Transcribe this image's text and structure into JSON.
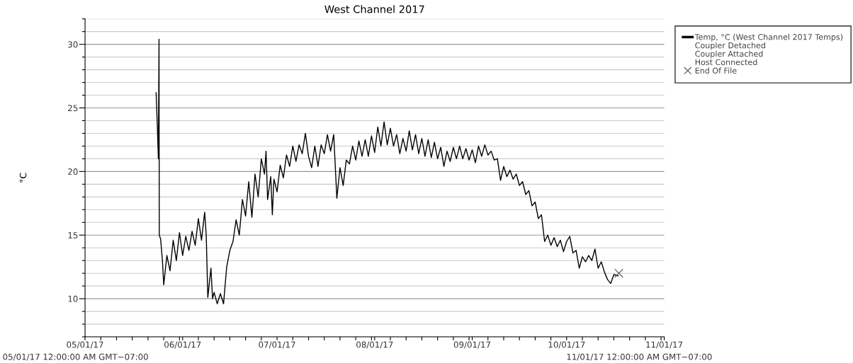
{
  "chart_data": {
    "type": "line",
    "title": "West Channel 2017",
    "ylabel": "°C",
    "annotations": [
      "05/01/17 12:00:00 AM GMT−07:00",
      "11/01/17 12:00:00 AM GMT−07:00"
    ],
    "xlim": [
      "2017-05-01",
      "2017-11-01"
    ],
    "xticks": [
      {
        "value": "2017-05-01",
        "label": "05/01/17"
      },
      {
        "value": "2017-05-06",
        "label": null
      },
      {
        "value": "2017-05-11",
        "label": null
      },
      {
        "value": "2017-05-16",
        "label": null
      },
      {
        "value": "2017-05-21",
        "label": null
      },
      {
        "value": "2017-05-26",
        "label": null
      },
      {
        "value": "2017-05-31",
        "label": null
      },
      {
        "value": "2017-06-01",
        "label": "06/01/17"
      },
      {
        "value": "2017-06-06",
        "label": null
      },
      {
        "value": "2017-06-11",
        "label": null
      },
      {
        "value": "2017-06-16",
        "label": null
      },
      {
        "value": "2017-06-21",
        "label": null
      },
      {
        "value": "2017-06-26",
        "label": null
      },
      {
        "value": "2017-07-01",
        "label": "07/01/17"
      },
      {
        "value": "2017-07-06",
        "label": null
      },
      {
        "value": "2017-07-11",
        "label": null
      },
      {
        "value": "2017-07-16",
        "label": null
      },
      {
        "value": "2017-07-21",
        "label": null
      },
      {
        "value": "2017-07-26",
        "label": null
      },
      {
        "value": "2017-07-31",
        "label": null
      },
      {
        "value": "2017-08-01",
        "label": "08/01/17"
      },
      {
        "value": "2017-08-06",
        "label": null
      },
      {
        "value": "2017-08-11",
        "label": null
      },
      {
        "value": "2017-08-16",
        "label": null
      },
      {
        "value": "2017-08-21",
        "label": null
      },
      {
        "value": "2017-08-26",
        "label": null
      },
      {
        "value": "2017-08-31",
        "label": null
      },
      {
        "value": "2017-09-01",
        "label": "09/01/17"
      },
      {
        "value": "2017-09-06",
        "label": null
      },
      {
        "value": "2017-09-11",
        "label": null
      },
      {
        "value": "2017-09-16",
        "label": null
      },
      {
        "value": "2017-09-21",
        "label": null
      },
      {
        "value": "2017-09-26",
        "label": null
      },
      {
        "value": "2017-10-01",
        "label": "10/01/17"
      },
      {
        "value": "2017-10-06",
        "label": null
      },
      {
        "value": "2017-10-11",
        "label": null
      },
      {
        "value": "2017-10-16",
        "label": null
      },
      {
        "value": "2017-10-21",
        "label": null
      },
      {
        "value": "2017-10-26",
        "label": null
      },
      {
        "value": "2017-10-31",
        "label": null
      },
      {
        "value": "2017-11-01",
        "label": "11/01/17"
      }
    ],
    "ylim": [
      7,
      32
    ],
    "yticks": [
      {
        "value": 7,
        "label": null
      },
      {
        "value": 8,
        "label": null
      },
      {
        "value": 9,
        "label": null
      },
      10,
      {
        "value": 11,
        "label": null
      },
      {
        "value": 12,
        "label": null
      },
      {
        "value": 13,
        "label": null
      },
      {
        "value": 14,
        "label": null
      },
      15,
      {
        "value": 16,
        "label": null
      },
      {
        "value": 17,
        "label": null
      },
      {
        "value": 18,
        "label": null
      },
      {
        "value": 19,
        "label": null
      },
      20,
      {
        "value": 21,
        "label": null
      },
      {
        "value": 22,
        "label": null
      },
      {
        "value": 23,
        "label": null
      },
      {
        "value": 24,
        "label": null
      },
      25,
      {
        "value": 26,
        "label": null
      },
      {
        "value": 27,
        "label": null
      },
      {
        "value": 28,
        "label": null
      },
      {
        "value": 29,
        "label": null
      },
      30,
      {
        "value": 31,
        "label": null
      },
      {
        "value": 32,
        "label": null
      }
    ],
    "grid": "y",
    "legend": "top right",
    "series": [
      {
        "name": "Temp, °C (West Channel 2017 Temps)",
        "color": "#000000",
        "x": [
          "2017-05-23T14:00",
          "2017-05-24T00:00",
          "2017-05-24T07:00",
          "2017-05-24T12:00",
          "2017-05-24T14:00",
          "2017-05-25T00:00",
          "2017-05-25T14:00",
          "2017-05-26",
          "2017-05-27",
          "2017-05-28",
          "2017-05-29",
          "2017-05-30",
          "2017-05-31",
          "2017-06-01",
          "2017-06-02",
          "2017-06-03",
          "2017-06-04",
          "2017-06-05",
          "2017-06-06",
          "2017-06-07",
          "2017-06-08",
          "2017-06-08T12:00",
          "2017-06-09",
          "2017-06-10",
          "2017-06-10T12:00",
          "2017-06-11",
          "2017-06-12",
          "2017-06-13",
          "2017-06-14",
          "2017-06-15",
          "2017-06-16",
          "2017-06-17",
          "2017-06-18",
          "2017-06-19",
          "2017-06-20",
          "2017-06-21",
          "2017-06-22",
          "2017-06-23",
          "2017-06-24",
          "2017-06-25",
          "2017-06-26",
          "2017-06-27",
          "2017-06-27T12:00",
          "2017-06-28",
          "2017-06-29",
          "2017-06-29T12:00",
          "2017-06-30",
          "2017-07-01",
          "2017-07-02",
          "2017-07-03",
          "2017-07-04",
          "2017-07-05",
          "2017-07-06",
          "2017-07-07",
          "2017-07-08",
          "2017-07-09",
          "2017-07-10",
          "2017-07-11",
          "2017-07-12",
          "2017-07-13",
          "2017-07-14",
          "2017-07-15",
          "2017-07-16",
          "2017-07-17",
          "2017-07-18",
          "2017-07-19",
          "2017-07-20",
          "2017-07-21",
          "2017-07-22",
          "2017-07-23",
          "2017-07-24",
          "2017-07-25",
          "2017-07-26",
          "2017-07-27",
          "2017-07-28",
          "2017-07-29",
          "2017-07-30",
          "2017-07-31",
          "2017-08-01",
          "2017-08-02",
          "2017-08-03",
          "2017-08-04",
          "2017-08-05",
          "2017-08-06",
          "2017-08-07",
          "2017-08-08",
          "2017-08-09",
          "2017-08-10",
          "2017-08-11",
          "2017-08-12",
          "2017-08-13",
          "2017-08-14",
          "2017-08-15",
          "2017-08-16",
          "2017-08-17",
          "2017-08-18",
          "2017-08-19",
          "2017-08-20",
          "2017-08-21",
          "2017-08-22",
          "2017-08-23",
          "2017-08-24",
          "2017-08-25",
          "2017-08-26",
          "2017-08-27",
          "2017-08-28",
          "2017-08-29",
          "2017-08-30",
          "2017-08-31",
          "2017-09-01",
          "2017-09-02",
          "2017-09-03",
          "2017-09-04",
          "2017-09-05",
          "2017-09-06",
          "2017-09-07",
          "2017-09-08",
          "2017-09-09",
          "2017-09-10",
          "2017-09-11",
          "2017-09-12",
          "2017-09-13",
          "2017-09-14",
          "2017-09-15",
          "2017-09-16",
          "2017-09-17",
          "2017-09-18",
          "2017-09-19",
          "2017-09-20",
          "2017-09-21",
          "2017-09-22",
          "2017-09-23",
          "2017-09-24",
          "2017-09-25",
          "2017-09-26",
          "2017-09-27",
          "2017-09-28",
          "2017-09-29",
          "2017-09-30",
          "2017-10-01",
          "2017-10-02",
          "2017-10-03",
          "2017-10-04",
          "2017-10-05",
          "2017-10-06",
          "2017-10-07",
          "2017-10-08",
          "2017-10-09",
          "2017-10-10",
          "2017-10-11",
          "2017-10-12",
          "2017-10-13",
          "2017-10-14",
          "2017-10-15",
          "2017-10-16",
          "2017-10-17T08:00"
        ],
        "values": [
          26.2,
          23.3,
          21.0,
          30.4,
          15.0,
          14.7,
          13.0,
          11.1,
          13.4,
          12.2,
          14.6,
          13.0,
          15.2,
          13.4,
          14.9,
          13.8,
          15.3,
          14.2,
          16.3,
          14.6,
          16.8,
          15.0,
          10.1,
          12.4,
          10.0,
          10.5,
          9.6,
          10.4,
          9.6,
          12.5,
          13.8,
          14.5,
          16.2,
          15.0,
          17.8,
          16.5,
          19.2,
          16.4,
          19.8,
          18.0,
          21.0,
          19.8,
          21.6,
          17.8,
          19.6,
          16.6,
          19.4,
          18.4,
          20.5,
          19.5,
          21.3,
          20.4,
          22.0,
          20.8,
          22.1,
          21.4,
          23.0,
          21.2,
          20.3,
          22.0,
          20.4,
          22.1,
          21.4,
          22.9,
          21.6,
          22.9,
          17.9,
          20.3,
          18.9,
          20.9,
          20.6,
          22.0,
          20.9,
          22.4,
          21.2,
          22.5,
          21.2,
          22.8,
          21.5,
          23.5,
          22.0,
          23.9,
          22.1,
          23.4,
          22.0,
          22.9,
          21.4,
          22.6,
          21.6,
          23.2,
          21.7,
          22.9,
          21.4,
          22.6,
          21.2,
          22.5,
          21.1,
          22.3,
          21.0,
          21.9,
          20.4,
          21.6,
          20.8,
          21.9,
          21.0,
          22.0,
          21.0,
          21.8,
          20.9,
          21.7,
          20.7,
          22.0,
          21.2,
          22.1,
          21.3,
          21.6,
          20.9,
          21.0,
          19.3,
          20.4,
          19.6,
          20.1,
          19.4,
          19.8,
          18.9,
          19.2,
          18.2,
          18.5,
          17.3,
          17.6,
          16.3,
          16.6,
          14.5,
          15.0,
          14.2,
          14.8,
          14.1,
          14.6,
          13.7,
          14.5,
          14.9,
          13.6,
          13.8,
          12.4,
          13.3,
          12.9,
          13.4,
          13.0,
          13.9,
          12.4,
          12.9,
          12.1,
          11.5,
          11.2,
          11.9,
          11.8
        ]
      },
      {
        "name": "Coupler Detached",
        "type": "scatter",
        "marker": "none"
      },
      {
        "name": "Coupler Attached",
        "type": "scatter",
        "marker": "none"
      },
      {
        "name": "Host Connected",
        "type": "scatter",
        "marker": "none"
      },
      {
        "name": "End Of File",
        "type": "scatter",
        "marker": "cross",
        "color": "#555555",
        "x": [
          "2017-10-17T14:00"
        ],
        "values": [
          12.0
        ]
      }
    ]
  }
}
